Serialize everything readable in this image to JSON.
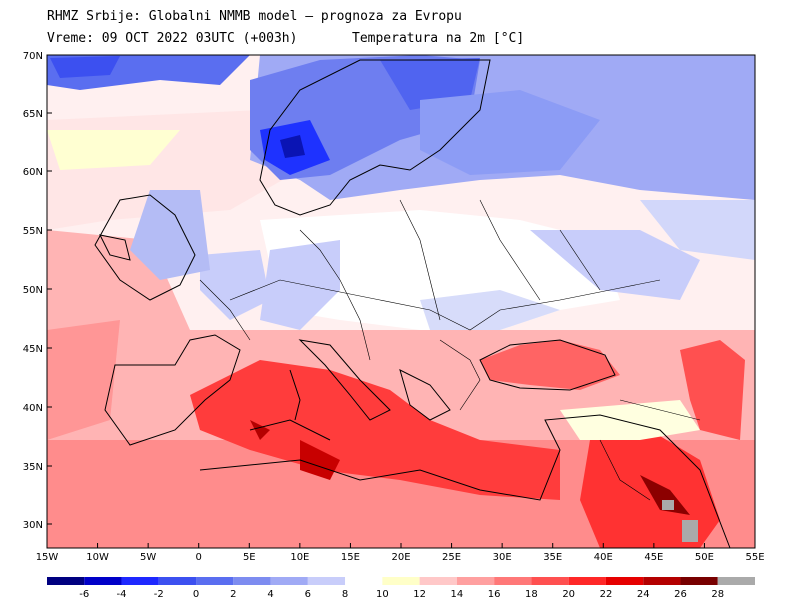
{
  "header": {
    "line1": "RHMZ Srbije: Globalni NMMB model — prognoza za Evropu",
    "line2": "Vreme: 09 OCT 2022 03UTC (+003h)",
    "line3": "Temperatura na 2m [°C]"
  },
  "map": {
    "lat_labels": [
      "70N",
      "65N",
      "60N",
      "55N",
      "50N",
      "45N",
      "40N",
      "35N",
      "30N"
    ],
    "lon_labels": [
      "15W",
      "10W",
      "5W",
      "0",
      "5E",
      "10E",
      "15E",
      "20E",
      "25E",
      "30E",
      "35E",
      "40E",
      "45E",
      "50E",
      "55E"
    ]
  },
  "legend": {
    "labels": [
      "-6",
      "-4",
      "-2",
      "0",
      "2",
      "4",
      "6",
      "8",
      "10",
      "12",
      "14",
      "16",
      "18",
      "20",
      "22",
      "24",
      "26",
      "28"
    ],
    "colors": [
      "#000080",
      "#0000c8",
      "#1e28ff",
      "#3c50f0",
      "#5a6ef0",
      "#7d8cf0",
      "#a0aaf5",
      "#c8cdfa",
      "#ffffff",
      "#ffffc8",
      "#ffc8c8",
      "#ffa0a0",
      "#ff7878",
      "#ff5050",
      "#ff2828",
      "#e60000",
      "#b40000",
      "#780000",
      "#aaaaaa"
    ]
  }
}
